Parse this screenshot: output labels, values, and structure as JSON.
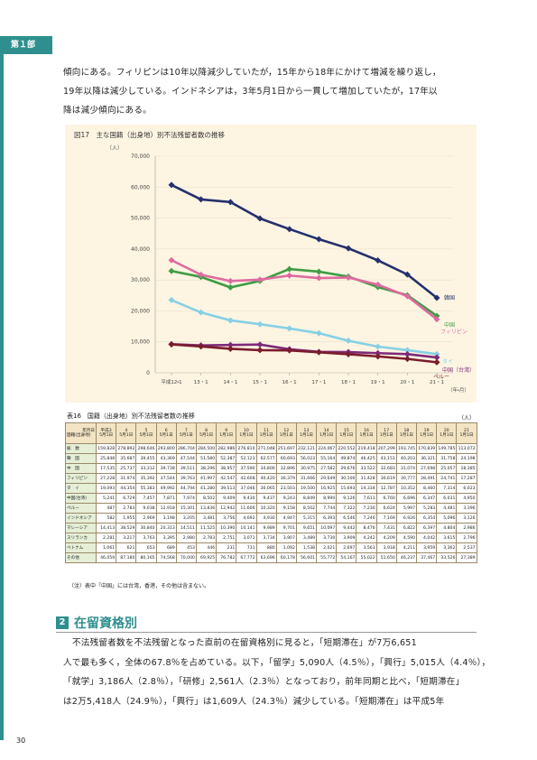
{
  "header": {
    "part": "第１部"
  },
  "intro": {
    "lines": [
      "傾向にある。フィリピンは10年以降減少していたが，15年から18年にかけて増減を繰り返し，",
      "19年以降は減少している。インドネシアは，3年5月1日から一貫して増加していたが，17年以",
      "降は減少傾向にある。"
    ]
  },
  "chart_data": {
    "type": "line",
    "title": "図17　主な国籍（出身地）別不法残留者数の推移",
    "y_unit": "（人）",
    "x_unit": "（年・月）",
    "categories": [
      "平成12・1",
      "13・1",
      "14・1",
      "15・1",
      "16・1",
      "17・1",
      "18・1",
      "19・1",
      "20・1",
      "21・1"
    ],
    "ylim": [
      0,
      70000
    ],
    "yticks": [
      0,
      {
        "value": 10000,
        "label": "10,000"
      },
      {
        "value": 20000,
        "label": "20,000"
      },
      {
        "value": 30000,
        "label": "30,000"
      },
      {
        "value": 40000,
        "label": "40,000"
      },
      {
        "value": 50000,
        "label": "50,000"
      },
      {
        "value": 60000,
        "label": "60,000"
      },
      {
        "value": 70000,
        "label": "70,000"
      }
    ],
    "series": [
      {
        "name": "韓国",
        "color": "#25306e",
        "values": [
          60693,
          56023,
          55164,
          49874,
          46425,
          43151,
          40203,
          36321,
          31758,
          24198
        ]
      },
      {
        "name": "中国",
        "color": "#3f9c45",
        "values": [
          32896,
          30975,
          27582,
          29676,
          33522,
          32683,
          31074,
          27698,
          25057,
          18385
        ]
      },
      {
        "name": "フィリピン",
        "color": "#df6aa0",
        "values": [
          36379,
          31666,
          29649,
          30100,
          31428,
          30619,
          30777,
          28491,
          24741,
          17287
        ]
      },
      {
        "name": "タイ",
        "color": "#86d0e6",
        "values": [
          23503,
          19500,
          16925,
          15693,
          14334,
          12787,
          10352,
          8460,
          7314,
          6023
        ]
      },
      {
        "name": "中国（台湾）",
        "color": "#7d2a78",
        "values": [
          9243,
          8849,
          8990,
          9126,
          7611,
          6760,
          6696,
          6347,
          6031,
          4950
        ]
      },
      {
        "name": "ペルー",
        "color": "#7a1c2c",
        "values": [
          9158,
          8502,
          7744,
          7322,
          7230,
          6624,
          5997,
          5283,
          4481,
          3396
        ]
      }
    ]
  },
  "table": {
    "title": "表16　国籍（出身地）別不法残留者数の推移",
    "unit": "（人）",
    "corner_top": "年月日",
    "corner_bottom": "国籍(出身地)",
    "columns": [
      {
        "year": "平成3",
        "date": "5月1日"
      },
      {
        "year": "4",
        "date": "5月1日"
      },
      {
        "year": "5",
        "date": "5月1日"
      },
      {
        "year": "6",
        "date": "5月1日"
      },
      {
        "year": "7",
        "date": "5月1日"
      },
      {
        "year": "8",
        "date": "5月1日"
      },
      {
        "year": "9",
        "date": "1月1日"
      },
      {
        "year": "10",
        "date": "1月1日"
      },
      {
        "year": "11",
        "date": "1月1日"
      },
      {
        "year": "12",
        "date": "1月1日"
      },
      {
        "year": "13",
        "date": "1月1日"
      },
      {
        "year": "14",
        "date": "1月1日"
      },
      {
        "year": "15",
        "date": "1月1日"
      },
      {
        "year": "16",
        "date": "1月1日"
      },
      {
        "year": "17",
        "date": "1月1日"
      },
      {
        "year": "18",
        "date": "1月1日"
      },
      {
        "year": "19",
        "date": "1月1日"
      },
      {
        "year": "20",
        "date": "1月1日"
      },
      {
        "year": "21",
        "date": "1月1日"
      }
    ],
    "rows": [
      {
        "label": "総　数",
        "values": [
          "159,828",
          "278,892",
          "298,646",
          "293,800",
          "286,704",
          "284,500",
          "282,986",
          "276,810",
          "271,048",
          "251,697",
          "232,121",
          "224,067",
          "220,552",
          "219,418",
          "207,299",
          "193,745",
          "170,839",
          "149,785",
          "113,072"
        ]
      },
      {
        "label": "韓　国",
        "values": [
          "25,848",
          "35,687",
          "39,455",
          "43,369",
          "47,544",
          "51,580",
          "52,387",
          "52,123",
          "62,577",
          "60,693",
          "56,023",
          "55,164",
          "49,874",
          "46,425",
          "43,151",
          "40,203",
          "36,321",
          "31,758",
          "24,198"
        ]
      },
      {
        "label": "中　国",
        "values": [
          "17,535",
          "25,737",
          "33,312",
          "39,738",
          "39,511",
          "38,296",
          "38,957",
          "37,590",
          "34,800",
          "32,896",
          "30,975",
          "27,582",
          "29,676",
          "33,522",
          "32,683",
          "31,074",
          "27,698",
          "25,057",
          "18,385"
        ]
      },
      {
        "label": "フィリピン",
        "values": [
          "27,228",
          "31,974",
          "35,392",
          "37,544",
          "39,763",
          "41,997",
          "42,547",
          "42,608",
          "40,420",
          "36,379",
          "31,666",
          "29,649",
          "30,100",
          "31,428",
          "30,619",
          "30,777",
          "28,491",
          "24,741",
          "17,287"
        ]
      },
      {
        "label": "タ　イ",
        "values": [
          "19,093",
          "44,354",
          "55,383",
          "49,992",
          "44,794",
          "41,280",
          "39,513",
          "37,046",
          "30,065",
          "23,503",
          "19,500",
          "16,925",
          "15,693",
          "14,334",
          "12,787",
          "10,352",
          "8,460",
          "7,314",
          "6,023"
        ]
      },
      {
        "label": "中国(台湾)",
        "values": [
          "5,241",
          "6,729",
          "7,457",
          "7,871",
          "7,974",
          "8,502",
          "9,409",
          "9,430",
          "9,437",
          "9,243",
          "8,849",
          "8,990",
          "9,126",
          "7,611",
          "6,760",
          "6,696",
          "6,347",
          "6,031",
          "4,950"
        ]
      },
      {
        "label": "ペルー",
        "values": [
          "487",
          "2,783",
          "9,038",
          "12,918",
          "15,301",
          "13,836",
          "12,942",
          "11,606",
          "10,320",
          "9,158",
          "8,502",
          "7,744",
          "7,322",
          "7,230",
          "6,624",
          "5,997",
          "5,283",
          "4,481",
          "3,396"
        ]
      },
      {
        "label": "インドネシア",
        "values": [
          "582",
          "1,955",
          "2,969",
          "3,198",
          "3,205",
          "3,481",
          "3,756",
          "4,692",
          "4,930",
          "4,947",
          "5,315",
          "6,393",
          "6,546",
          "7,246",
          "7,169",
          "6,926",
          "6,354",
          "5,096",
          "3,126"
        ]
      },
      {
        "label": "マレーシア",
        "values": [
          "14,413",
          "38,529",
          "30,840",
          "20,313",
          "14,511",
          "11,525",
          "10,390",
          "10,141",
          "9,989",
          "9,701",
          "9,651",
          "10,097",
          "9,442",
          "8,476",
          "7,431",
          "6,822",
          "6,397",
          "4,804",
          "2,986"
        ]
      },
      {
        "label": "スリランカ",
        "values": [
          "2,281",
          "3,217",
          "3,763",
          "3,395",
          "2,980",
          "2,783",
          "2,751",
          "3,071",
          "3,734",
          "3,907",
          "3,489",
          "3,730",
          "3,909",
          "4,242",
          "4,209",
          "4,590",
          "4,042",
          "3,615",
          "2,796"
        ]
      },
      {
        "label": "ベトナム",
        "values": [
          "1,061",
          "621",
          "653",
          "689",
          "453",
          "446",
          "231",
          "731",
          "880",
          "1,092",
          "1,538",
          "2,021",
          "2,697",
          "3,563",
          "3,918",
          "4,211",
          "3,959",
          "3,362",
          "2,537"
        ]
      },
      {
        "label": "その他",
        "values": [
          "46,059",
          "87,180",
          "80,165",
          "74,568",
          "70,000",
          "69,925",
          "76,782",
          "67,772",
          "63,696",
          "60,178",
          "56,601",
          "55,772",
          "54,167",
          "55,022",
          "51,650",
          "46,237",
          "37,467",
          "33,526",
          "27,389"
        ]
      }
    ],
    "note": "（注）表中「中国」には台湾，香港，その他は含まない。"
  },
  "section": {
    "number": "2",
    "title": "在留資格別",
    "lines": [
      "不法残留者数を不法残留となった直前の在留資格別に見ると，「短期滞在」が7万6,651",
      "人で最も多く，全体の67.8％を占めている。以下，「留学」5,090人（4.5％），「興行」5,015人（4.4％），",
      "「就学」3,186人（2.8％），「研修」2,561人（2.3％）となっており，前年同期と比べ，「短期滞在」",
      "は2万5,418人（24.9％），「興行」は1,609人（24.3％）減少している。「短期滞在」は平成5年"
    ]
  },
  "page_number": "30"
}
